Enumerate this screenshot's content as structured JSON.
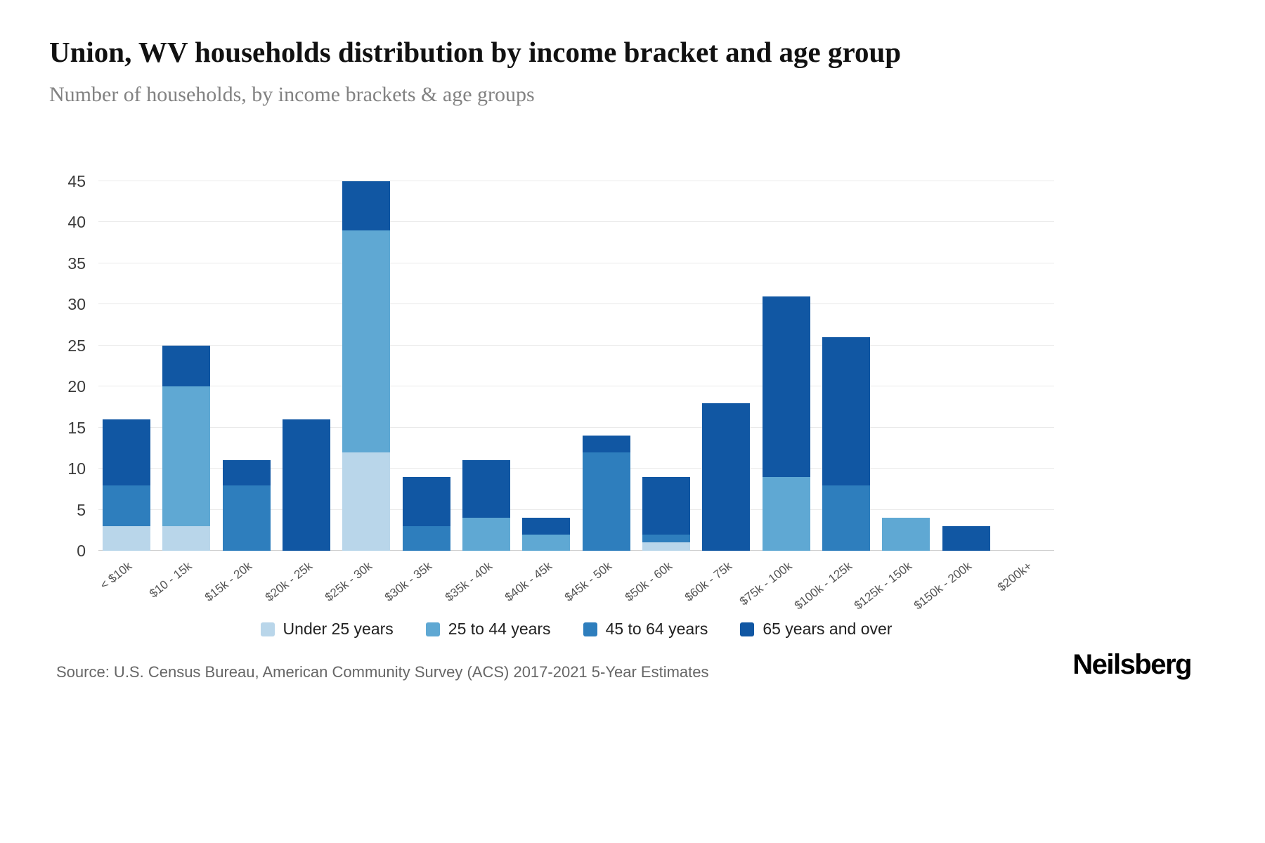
{
  "header": {
    "title": "Union, WV households distribution by income bracket and age group",
    "subtitle": "Number of households, by income brackets & age groups"
  },
  "chart_data": {
    "type": "bar",
    "stacked": true,
    "categories": [
      "< $10k",
      "$10 - 15k",
      "$15k - 20k",
      "$20k - 25k",
      "$25k - 30k",
      "$30k - 35k",
      "$35k - 40k",
      "$40k - 45k",
      "$45k - 50k",
      "$50k - 60k",
      "$60k - 75k",
      "$75k - 100k",
      "$100k - 125k",
      "$125k - 150k",
      "$150k - 200k",
      "$200k+"
    ],
    "series": [
      {
        "name": "Under 25 years",
        "color": "#b9d6ea",
        "values": [
          3,
          3,
          0,
          0,
          12,
          0,
          0,
          0,
          0,
          1,
          0,
          0,
          0,
          0,
          0,
          0
        ]
      },
      {
        "name": "25 to 44 years",
        "color": "#5fa8d3",
        "values": [
          0,
          17,
          0,
          0,
          27,
          0,
          4,
          2,
          0,
          0,
          0,
          9,
          0,
          4,
          0,
          0
        ]
      },
      {
        "name": "45 to 64 years",
        "color": "#2e7ebd",
        "values": [
          5,
          0,
          8,
          0,
          0,
          3,
          0,
          0,
          12,
          1,
          0,
          0,
          8,
          0,
          0,
          0
        ]
      },
      {
        "name": "65 years and over",
        "color": "#1157a3",
        "values": [
          8,
          5,
          3,
          16,
          6,
          6,
          7,
          2,
          2,
          7,
          18,
          22,
          18,
          0,
          3,
          0
        ]
      }
    ],
    "totals": [
      16,
      25,
      11,
      16,
      45,
      9,
      11,
      4,
      14,
      9,
      18,
      31,
      26,
      4,
      3,
      0
    ],
    "ylim": [
      0,
      45
    ],
    "ytick_step": 5,
    "grid": true,
    "legend_position": "bottom"
  },
  "footer": {
    "source": "Source: U.S. Census Bureau, American Community Survey (ACS) 2017-2021 5-Year Estimates",
    "brand": "Neilsberg"
  }
}
